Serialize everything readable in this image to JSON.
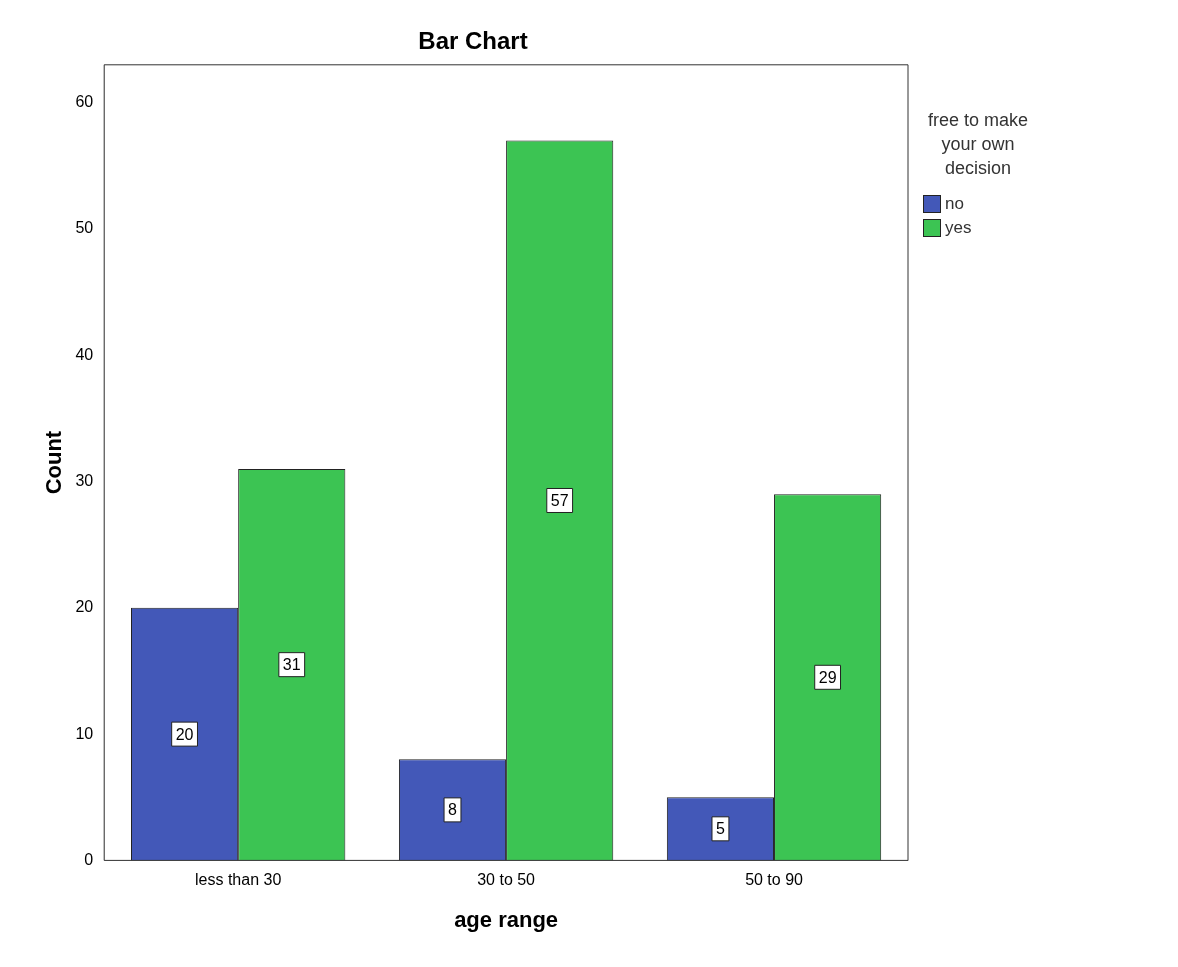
{
  "chart_data": {
    "type": "bar",
    "title": "Bar Chart",
    "xlabel": "age range",
    "ylabel": "Count",
    "legend_title": "free to make your own decision",
    "categories": [
      "less than 30",
      "30 to 50",
      "50 to 90"
    ],
    "series": [
      {
        "name": "no",
        "color": "#4358b8",
        "values": [
          20,
          8,
          5
        ]
      },
      {
        "name": "yes",
        "color": "#3cc453",
        "values": [
          31,
          57,
          29
        ]
      }
    ],
    "ylim": [
      0,
      63
    ],
    "yticks": [
      0,
      10,
      20,
      30,
      40,
      50,
      60
    ],
    "grid": false,
    "legend": "right",
    "data_labels": true
  }
}
